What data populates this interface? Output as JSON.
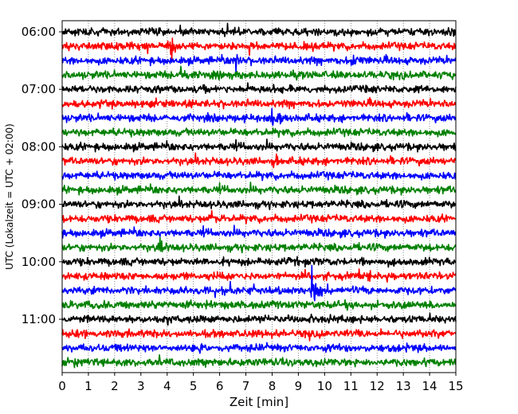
{
  "chart_data": {
    "type": "line",
    "title": "",
    "xlabel": "Zeit  [min]",
    "ylabel": "UTC (Lokalzeit = UTC + 02:00)",
    "xlim": [
      0,
      15
    ],
    "x_ticks": [
      "0",
      "1",
      "2",
      "3",
      "4",
      "5",
      "6",
      "7",
      "8",
      "9",
      "10",
      "11",
      "12",
      "13",
      "14",
      "15"
    ],
    "y_ticks": [
      "06:00",
      "07:00",
      "08:00",
      "09:00",
      "10:00",
      "11:00"
    ],
    "grid": "vertical dotted lines at each minute",
    "trace_interval_minutes": 15,
    "trace_colors": [
      "#000000",
      "#ff0000",
      "#0000ff",
      "#008000"
    ],
    "traces": [
      {
        "start": "06:00",
        "color": "#000000"
      },
      {
        "start": "06:15",
        "color": "#ff0000"
      },
      {
        "start": "06:30",
        "color": "#0000ff"
      },
      {
        "start": "06:45",
        "color": "#008000"
      },
      {
        "start": "07:00",
        "color": "#000000"
      },
      {
        "start": "07:15",
        "color": "#ff0000"
      },
      {
        "start": "07:30",
        "color": "#0000ff"
      },
      {
        "start": "07:45",
        "color": "#008000"
      },
      {
        "start": "08:00",
        "color": "#000000"
      },
      {
        "start": "08:15",
        "color": "#ff0000"
      },
      {
        "start": "08:30",
        "color": "#0000ff"
      },
      {
        "start": "08:45",
        "color": "#008000"
      },
      {
        "start": "09:00",
        "color": "#000000"
      },
      {
        "start": "09:15",
        "color": "#ff0000"
      },
      {
        "start": "09:30",
        "color": "#0000ff"
      },
      {
        "start": "09:45",
        "color": "#008000"
      },
      {
        "start": "10:00",
        "color": "#000000"
      },
      {
        "start": "10:15",
        "color": "#ff0000"
      },
      {
        "start": "10:30",
        "color": "#0000ff"
      },
      {
        "start": "10:45",
        "color": "#008000"
      },
      {
        "start": "11:00",
        "color": "#000000"
      },
      {
        "start": "11:15",
        "color": "#ff0000"
      },
      {
        "start": "11:30",
        "color": "#0000ff"
      },
      {
        "start": "11:45",
        "color": "#008000"
      }
    ],
    "events": [
      {
        "trace": "06:15",
        "minute": 4.1,
        "amplitude": 2.2
      },
      {
        "trace": "06:30",
        "minute": 6.6,
        "amplitude": 1.8
      },
      {
        "trace": "06:30",
        "minute": 11.0,
        "amplitude": 1.5
      },
      {
        "trace": "06:45",
        "minute": 4.5,
        "amplitude": 1.6
      },
      {
        "trace": "07:30",
        "minute": 8.0,
        "amplitude": 2.6
      },
      {
        "trace": "08:15",
        "minute": 8.1,
        "amplitude": 0.9
      },
      {
        "trace": "09:15",
        "minute": 5.7,
        "amplitude": 1.0
      },
      {
        "trace": "09:45",
        "minute": 3.7,
        "amplitude": 1.2
      },
      {
        "trace": "10:30",
        "minute": 9.5,
        "amplitude": 3.2
      }
    ]
  }
}
